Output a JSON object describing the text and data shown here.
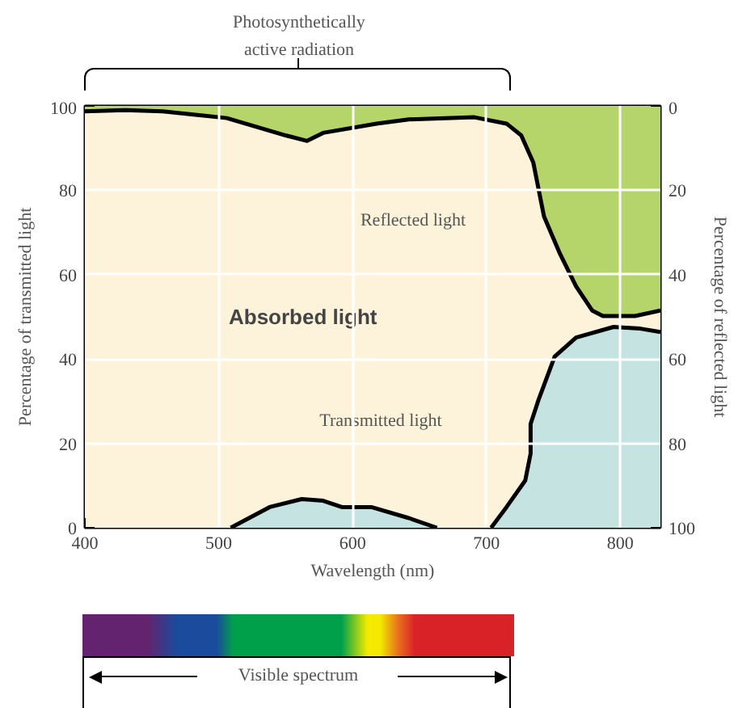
{
  "chart_data": {
    "type": "area",
    "xlabel": "Wavelength (nm)",
    "ylabel": "Percentage of transmitted light",
    "y2label": "Percentage of reflected light",
    "xlim": [
      400,
      830
    ],
    "xticks": [
      400,
      500,
      600,
      700,
      800
    ],
    "ylim": [
      0,
      100
    ],
    "yticks": [
      0,
      20,
      40,
      60,
      80,
      100
    ],
    "y2lim": [
      100,
      0
    ],
    "y2ticks": [
      0,
      20,
      40,
      60,
      80,
      100
    ],
    "grid": true,
    "series": [
      {
        "color": "#c5e3e1",
        "x": [
          509,
          538,
          562,
          578,
          592,
          614,
          642,
          663,
          683,
          703.5,
          715,
          729,
          733,
          733,
          739,
          751,
          767,
          795,
          815,
          830
        ],
        "values": [
          0,
          4.9,
          6.8,
          6.4,
          4.9,
          4.9,
          2.3,
          0,
          null,
          0,
          4.9,
          11.2,
          17.6,
          24.6,
          30.4,
          40.6,
          45.1,
          47.6,
          47.2,
          46.4
        ]
      },
      {
        "axis": "y2",
        "color": "#b5d56a",
        "x": [
          400,
          430,
          458,
          506,
          550,
          566,
          578,
          618,
          642,
          691,
          715,
          726,
          735,
          743,
          755,
          767,
          779,
          787,
          811,
          830
        ],
        "values": [
          1.3,
          1.0,
          1.3,
          2.9,
          7.0,
          8.3,
          6.4,
          4.2,
          3.2,
          2.7,
          4.2,
          7.0,
          13.4,
          26.2,
          35.1,
          42.8,
          48.5,
          49.8,
          49.8,
          48.5
        ]
      }
    ],
    "bands": [
      {
        "axis": "y",
        "from": 0,
        "to": 100,
        "color": "#fdf3da",
        "label": "Absorbed light"
      }
    ],
    "annotations": [
      "Photosynthetically\nactive radiation",
      "Reflected light",
      "Transmitted light",
      "Visible spectrum"
    ]
  }
}
